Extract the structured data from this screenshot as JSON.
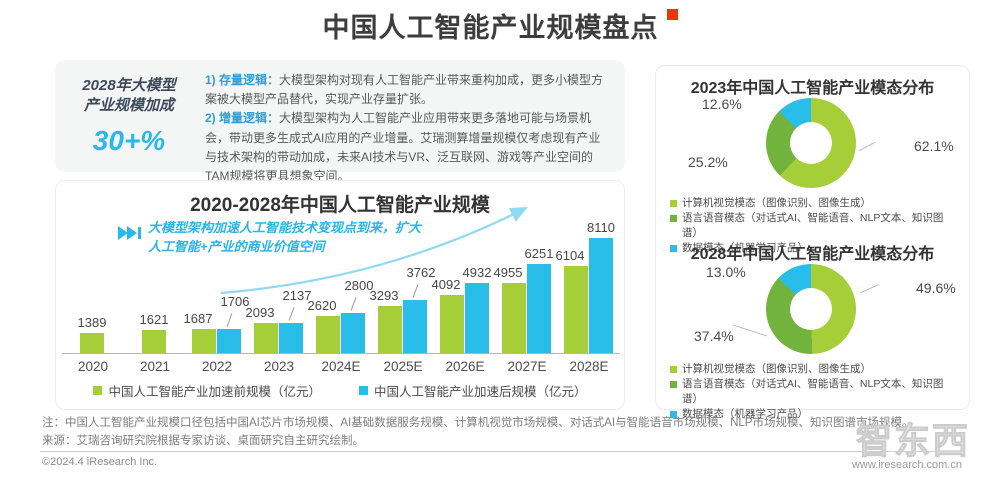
{
  "page": {
    "title": "中国人工智能产业规模盘点",
    "footer_note_label": "注：",
    "footer_note": "中国人工智能产业规模口径包括中国AI芯片市场规模、AI基础数据服务规模、计算机视觉市场规模、对话式AI与智能语音市场规模、NLP市场规模、知识图谱市场规模。",
    "footer_source_label": "来源：",
    "footer_source": "艾瑞咨询研究院根据专家访谈、桌面研究自主研究绘制。",
    "copyright": "©2024.4 iResearch Inc.",
    "website": "www.iresearch.com.cn",
    "watermark": "智东西",
    "accent_red": "#e8380d",
    "accent_cyan": "#29b9e8"
  },
  "highlight": {
    "badge_line1": "2028年大模型",
    "badge_line2": "产业规模加成",
    "badge_value": "30+%",
    "point1_label": "1) 存量逻辑：",
    "point1_text": "大模型架构对现有人工智能产业带来重构加成，更多小模型方案被大模型产品替代，实现产业存量扩张。",
    "point2_label": "2) 增量逻辑：",
    "point2_text": "大模型架构为人工智能产业应用带来更多落地可能与场景机会，带动更多生成式AI应用的产业增量。艾瑞测算增量规模仅考虑现有产业与技术架构的带动加成，未来AI技术与VR、泛互联网、游戏等产业空间的TAM规模将更具想象空间。"
  },
  "chart_data": [
    {
      "type": "bar",
      "title": "2020-2028年中国人工智能产业规模",
      "annotation": "大模型架构加速人工智能技术变现点到来，扩大人工智能+产业的商业价值空间",
      "categories": [
        "2020",
        "2021",
        "2022",
        "2023",
        "2024E",
        "2025E",
        "2026E",
        "2027E",
        "2028E"
      ],
      "series": [
        {
          "name": "中国人工智能产业加速前规模（亿元）",
          "color": "#a5ce39",
          "values": [
            1389,
            1621,
            1687,
            2093,
            2620,
            3293,
            4092,
            4955,
            6104
          ]
        },
        {
          "name": "中国人工智能产业加速后规模（亿元）",
          "color": "#29bde9",
          "values": [
            null,
            null,
            1706,
            2137,
            2800,
            3762,
            4932,
            6251,
            8110
          ]
        }
      ],
      "xlabel": "",
      "ylabel": "亿元",
      "ylim": [
        0,
        8110
      ],
      "grid": false,
      "legend_position": "bottom"
    },
    {
      "type": "pie",
      "title": "2023年中国人工智能产业模态分布",
      "labels": [
        "计算机视觉模态（图像识别、图像生成）",
        "语言语音模态（对话式AI、智能语音、NLP文本、知识图谱）",
        "数据模态（机器学习产品）"
      ],
      "values": [
        62.1,
        25.2,
        12.6
      ],
      "pct_labels": [
        "62.1%",
        "25.2%",
        "12.6%"
      ],
      "colors": [
        "#a5ce39",
        "#72b33e",
        "#29bde9"
      ],
      "donut": true,
      "legend_position": "bottom"
    },
    {
      "type": "pie",
      "title": "2028年中国人工智能产业模态分布",
      "labels": [
        "计算机视觉模态（图像识别、图像生成）",
        "语言语音模态（对话式AI、智能语音、NLP文本、知识图谱）",
        "数据模态（机器学习产品）"
      ],
      "values": [
        49.6,
        37.4,
        13.0
      ],
      "pct_labels": [
        "49.6%",
        "37.4%",
        "13.0%"
      ],
      "colors": [
        "#a5ce39",
        "#72b33e",
        "#29bde9"
      ],
      "donut": true,
      "legend_position": "bottom"
    }
  ]
}
